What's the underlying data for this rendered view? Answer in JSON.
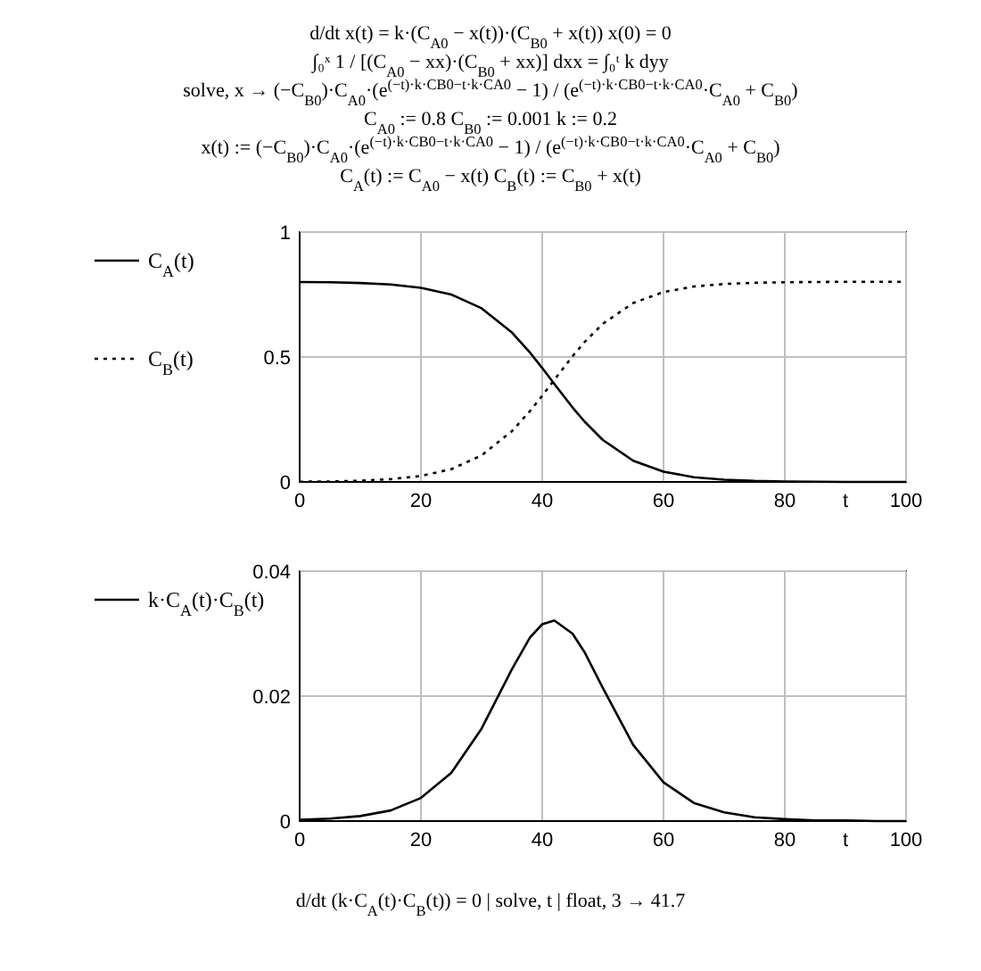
{
  "chart_data": [
    {
      "type": "line",
      "xlabel": "t",
      "x": [
        0,
        5,
        10,
        15,
        20,
        25,
        30,
        35,
        38,
        40,
        42,
        45,
        47,
        50,
        55,
        60,
        65,
        70,
        75,
        80,
        85,
        90,
        95,
        100
      ],
      "annotations": [
        "d/dt x(t) = k·(C$_{A0}$ − x(t))·(C$_{B0}$ + x(t))     x(0) = 0",
        "∫₀ˣ 1 / [(C$_{A0}$ − xx)·(C$_{B0}$ + xx)] dxx = ∫₀ᵗ k dyy",
        "solve, x → (−C$_{B0}$)·C$_{A0}$·(e$^{(−t)·k·CB0−t·k·CA0}$ − 1) / (e$^{(−t)·k·CB0−t·k·CA0}$·C$_{A0}$ + C$_{B0}$)",
        "C$_{A0}$ := 0.8        C$_{B0}$ := 0.001        k := 0.2",
        "x(t) := (−C$_{B0}$)·C$_{A0}$·(e$^{(−t)·k·CB0−t·k·CA0}$ − 1) / (e$^{(−t)·k·CB0−t·k·CA0}$·C$_{A0}$ + C$_{B0}$)",
        "C$_{A}$(t) := C$_{A0}$ − x(t)     C$_{B}$(t) := C$_{B0}$ + x(t)"
      ],
      "series": [
        {
          "name": "C$_{A}$(t)",
          "color": "#000000",
          "line_style": "solid",
          "values": [
            0.8,
            0.799,
            0.796,
            0.79,
            0.777,
            0.75,
            0.695,
            0.598,
            0.517,
            0.456,
            0.392,
            0.298,
            0.241,
            0.168,
            0.085,
            0.041,
            0.019,
            0.009,
            0.004,
            0.002,
            0.001,
            0.0,
            0.0,
            0.0
          ]
        },
        {
          "name": "C$_{B}$(t)",
          "color": "#000000",
          "line_style": "dotted",
          "values": [
            0.001,
            0.002,
            0.005,
            0.011,
            0.024,
            0.051,
            0.106,
            0.203,
            0.284,
            0.345,
            0.409,
            0.503,
            0.56,
            0.633,
            0.716,
            0.76,
            0.782,
            0.792,
            0.797,
            0.799,
            0.8,
            0.801,
            0.801,
            0.801
          ]
        }
      ],
      "xlim": [
        0,
        100
      ],
      "xticks": [
        0,
        20,
        40,
        60,
        80,
        100
      ],
      "ylim": [
        0,
        1
      ],
      "yticks": [
        0,
        0.5,
        1
      ],
      "grid": true,
      "legend": "left",
      "marker": "none"
    },
    {
      "type": "line",
      "xlabel": "t",
      "x": [
        0,
        5,
        10,
        15,
        20,
        25,
        30,
        35,
        38,
        40,
        42,
        45,
        47,
        50,
        55,
        60,
        65,
        70,
        75,
        80,
        85,
        90,
        95,
        100
      ],
      "annotations": [
        "d/dt (k·C$_{A}$(t)·C$_{B}$(t)) = 0   | solve, t   | float, 3 → 41.7"
      ],
      "series": [
        {
          "name": "k·C$_{A}$(t)·C$_{B}$(t)",
          "color": "#000000",
          "line_style": "solid",
          "values": [
            0.0002,
            0.0004,
            0.0008,
            0.0017,
            0.0037,
            0.0077,
            0.0148,
            0.0243,
            0.0294,
            0.0315,
            0.0321,
            0.03,
            0.027,
            0.0213,
            0.0122,
            0.0062,
            0.0029,
            0.0014,
            0.0006,
            0.0003,
            0.0001,
            0.0001,
            0.0,
            0.0
          ]
        }
      ],
      "xlim": [
        0,
        100
      ],
      "xticks": [
        0,
        20,
        40,
        60,
        80,
        100
      ],
      "ylim": [
        0,
        0.04
      ],
      "yticks": [
        0,
        0.02,
        0.04
      ],
      "grid": true,
      "legend": "left",
      "marker": "none"
    }
  ]
}
